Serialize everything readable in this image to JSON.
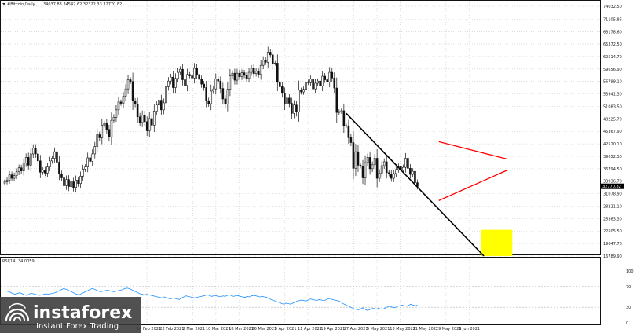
{
  "header": {
    "symbol": "#Bitcoin,Daily",
    "ohlc": "34037.83 34542.62 32322.33 32770.82"
  },
  "rsi": {
    "label": "RSI(14) 34.0059",
    "levels": [
      "100",
      "70",
      "30",
      "0"
    ]
  },
  "price_axis": {
    "ticks": [
      "74032.50",
      "71105.86",
      "68178.60",
      "65372.50",
      "62514.70",
      "59656.90",
      "56799.10",
      "53941.30",
      "51083.50",
      "48225.70",
      "45367.90",
      "42510.10",
      "39652.30",
      "36794.50",
      "33936.70",
      "31078.90",
      "28221.10",
      "25363.30",
      "22505.50",
      "19647.70",
      "16789.90"
    ],
    "current_label": "32770.82"
  },
  "time_axis": {
    "labels": [
      "14 Feb 2021",
      "22 Feb 2021",
      "2 Mar 2021",
      "10 Mar 2021",
      "18 Mar 2021",
      "26 Mar 2021",
      "3 Apr 2021",
      "11 Apr 2021",
      "19 Apr 2021",
      "27 Apr 2021",
      "5 May 2021",
      "13 May 2021",
      "21 May 2021",
      "29 May 2021",
      "6 Jun 2021"
    ]
  },
  "watermark": {
    "brand": "instaforex",
    "tagline": "Instant Forex Trading"
  },
  "colors": {
    "candle": "#111111",
    "triangle": "#ff0000",
    "trendline": "#000000",
    "target_box": "#ffff00",
    "rsi_line": "#1e90ff",
    "grid": "#c8c8c8"
  },
  "chart_data": {
    "type": "candlestick",
    "y_axis_ticks": [
      74032.5,
      71105.86,
      68178.6,
      65372.5,
      62514.7,
      59656.9,
      56799.1,
      53941.3,
      51083.5,
      48225.7,
      45367.9,
      42510.1,
      39652.3,
      36794.5,
      33936.7,
      31078.9,
      28221.1,
      25363.3,
      22505.5,
      19647.7,
      16789.9
    ],
    "close": [
      33800,
      34200,
      35400,
      34600,
      35200,
      36100,
      37000,
      36300,
      38100,
      39400,
      37600,
      40200,
      41500,
      40200,
      38600,
      36000,
      36500,
      35800,
      37200,
      38600,
      39200,
      40700,
      38300,
      35600,
      34700,
      32900,
      34300,
      32700,
      33800,
      32500,
      34200,
      33400,
      35100,
      36700,
      37200,
      39300,
      38500,
      40200,
      41900,
      44600,
      43900,
      46800,
      47200,
      45800,
      44100,
      47900,
      48600,
      50300,
      52100,
      51800,
      53400,
      55100,
      57200,
      56800,
      52300,
      51600,
      48700,
      47400,
      49100,
      47600,
      45500,
      48300,
      46800,
      50000,
      51400,
      52500,
      50300,
      51900,
      55600,
      56900,
      57800,
      55400,
      57500,
      58900,
      59600,
      57200,
      55900,
      58400,
      58100,
      57600,
      59800,
      58400,
      57300,
      56200,
      55400,
      52400,
      51700,
      54600,
      55100,
      57400,
      56900,
      55200,
      52800,
      51600,
      55000,
      58100,
      58700,
      57100,
      58700,
      57900,
      58800,
      58200,
      57500,
      58900,
      59800,
      58600,
      59200,
      58400,
      60500,
      61700,
      61200,
      63500,
      62900,
      60900,
      61000,
      56600,
      55600,
      54100,
      51600,
      53000,
      51800,
      49500,
      51400,
      49800,
      54800,
      54400,
      55000,
      56700,
      56500,
      57400,
      55100,
      56400,
      56900,
      55800,
      58000,
      57200,
      56700,
      58900,
      57600,
      55300,
      49700,
      49900,
      50100,
      46700,
      46600,
      43900,
      42800,
      36900,
      40700,
      37600,
      37400,
      34700,
      38200,
      39400,
      36800,
      37700,
      39200,
      34600,
      35800,
      37500,
      38400,
      35900,
      35600,
      34600,
      35700,
      36600,
      37300,
      36500,
      37100,
      39200,
      36900,
      35500,
      36200,
      33600,
      32770
    ],
    "annotations": [
      {
        "type": "trendline",
        "from": {
          "candle": 144,
          "price": 49500
        },
        "to": {
          "candle": 202,
          "price": 16800
        }
      },
      {
        "type": "triangle",
        "vertices": [
          {
            "candle": 183,
            "price": 43000
          },
          {
            "candle": 212,
            "price": 39000
          },
          {
            "candle": 183,
            "price": 29500
          },
          {
            "candle": 212,
            "price": 36500
          }
        ]
      },
      {
        "type": "target_zone",
        "candles": [
          201,
          214
        ],
        "price": [
          16800,
          22800
        ]
      }
    ],
    "rsi": {
      "range": [
        0,
        100
      ],
      "values": [
        62,
        61,
        60,
        58,
        56,
        55,
        57,
        58,
        56,
        54,
        53,
        55,
        57,
        56,
        55,
        54,
        53,
        54,
        55,
        56,
        55,
        56,
        57,
        58,
        60,
        62,
        64,
        66,
        65,
        63,
        61,
        59,
        57,
        55,
        54,
        56,
        58,
        60,
        62,
        64,
        66,
        65,
        63,
        61,
        60,
        61,
        62,
        63,
        62,
        61,
        60,
        61,
        62,
        63,
        64,
        66,
        67,
        66,
        64,
        62,
        60,
        58,
        56,
        55,
        54,
        55,
        54,
        53,
        52,
        51,
        50,
        49,
        48,
        50,
        49,
        47,
        46,
        48,
        47,
        46,
        45,
        48,
        50,
        52,
        51,
        50,
        49,
        48,
        49,
        50,
        51,
        52,
        53,
        54,
        52,
        51,
        53,
        52,
        51,
        50,
        52,
        51,
        53,
        54,
        52,
        51,
        53,
        52,
        51,
        50,
        49,
        51,
        50,
        52,
        53,
        52,
        51,
        50,
        51,
        50,
        49,
        47,
        45,
        43,
        42,
        40,
        39,
        37,
        36,
        38,
        37,
        36,
        38,
        40,
        42,
        43,
        44,
        43,
        42,
        44,
        46,
        45,
        44,
        43,
        45,
        44,
        43,
        44,
        46,
        47,
        45,
        44,
        43,
        42,
        40,
        37,
        35,
        33,
        31,
        29,
        27,
        26,
        25,
        27,
        29,
        26,
        24,
        25,
        27,
        28,
        26,
        28,
        27,
        26,
        28,
        30,
        32,
        31,
        29,
        30,
        32,
        33,
        34,
        33,
        32,
        34,
        36,
        34,
        33,
        34
      ]
    }
  }
}
